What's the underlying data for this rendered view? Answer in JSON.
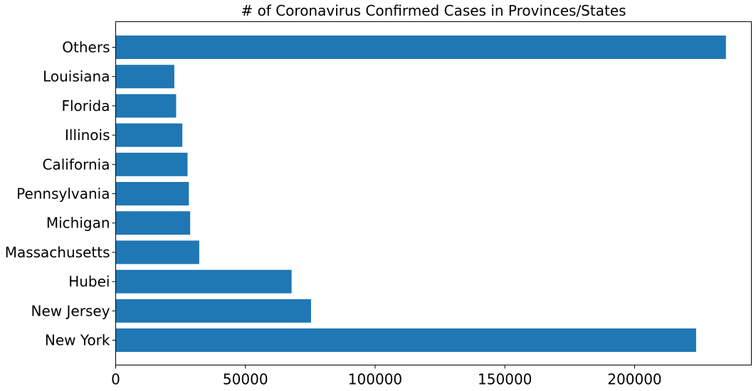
{
  "chart_data": {
    "type": "bar",
    "orientation": "horizontal",
    "title": "# of Coronavirus Confirmed Cases in Provinces/States",
    "xlabel": "",
    "ylabel": "",
    "categories": [
      "New York",
      "New Jersey",
      "Hubei",
      "Massachusetts",
      "Michigan",
      "Pennsylvania",
      "California",
      "Illinois",
      "Florida",
      "Louisiana",
      "Others"
    ],
    "values": [
      223700,
      75300,
      67800,
      32200,
      28700,
      28200,
      27700,
      25700,
      23300,
      22600,
      235200
    ],
    "xlim": [
      0,
      245000
    ],
    "xticks": [
      "0",
      "50000",
      "100000",
      "150000",
      "200000"
    ],
    "xtick_values": [
      0,
      50000,
      100000,
      150000,
      200000
    ],
    "bar_color": "#1f77b4",
    "grid": false,
    "legend": "none"
  }
}
